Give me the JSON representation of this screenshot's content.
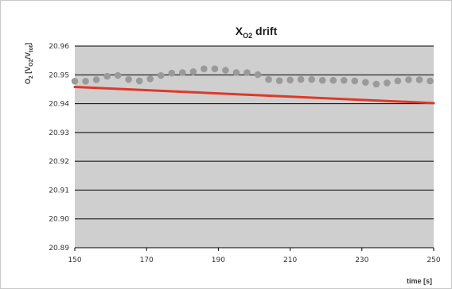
{
  "chart_data": {
    "type": "scatter",
    "title": {
      "main": "X",
      "sub": "O2",
      "suffix": " drift"
    },
    "ylabel": {
      "prefix": "O",
      "prefix_sub": "2",
      "mid": " [V",
      "mid_sub": "O2",
      "slash": "/V",
      "end_sub": "tot",
      "close": "]"
    },
    "xlabel": "time [s]",
    "xlim": [
      150,
      250
    ],
    "ylim": [
      20.89,
      20.96
    ],
    "x_ticks": [
      150,
      170,
      190,
      210,
      230,
      250
    ],
    "x_tick_labels": [
      "150",
      "170",
      "190",
      "210",
      "230",
      "250"
    ],
    "y_ticks": [
      20.89,
      20.9,
      20.91,
      20.92,
      20.93,
      20.94,
      20.95,
      20.96
    ],
    "y_tick_labels": [
      "20.89",
      "20.90",
      "20.91",
      "20.92",
      "20.93",
      "20.94",
      "20.95",
      "20.96"
    ],
    "grid": true,
    "series": [
      {
        "kind": "points",
        "color": "#9a9a9a",
        "x": [
          150,
          153,
          156,
          159,
          162,
          165,
          168,
          171,
          174,
          177,
          180,
          183,
          186,
          189,
          192,
          195,
          198,
          201,
          204,
          207,
          210,
          213,
          216,
          219,
          222,
          225,
          228,
          231,
          234,
          237,
          240,
          243,
          246,
          249
        ],
        "y": [
          20.9478,
          20.9478,
          20.9483,
          20.9495,
          20.9498,
          20.9484,
          20.9479,
          20.9486,
          20.9498,
          20.9506,
          20.9508,
          20.9511,
          20.9521,
          20.9521,
          20.9516,
          20.9508,
          20.9508,
          20.9501,
          20.9484,
          20.948,
          20.9482,
          20.9484,
          20.9484,
          20.9481,
          20.9481,
          20.9481,
          20.9479,
          20.9474,
          20.9468,
          20.9472,
          20.9479,
          20.9483,
          20.9483,
          20.9479
        ]
      },
      {
        "kind": "line",
        "color": "#e0382a",
        "x": [
          150,
          250
        ],
        "y": [
          20.9458,
          20.9402
        ]
      }
    ]
  },
  "colors": {
    "plot_bg": "#cfcfcf",
    "grid": "#000000",
    "points": "#9a9a9a",
    "trend": "#e0382a"
  }
}
